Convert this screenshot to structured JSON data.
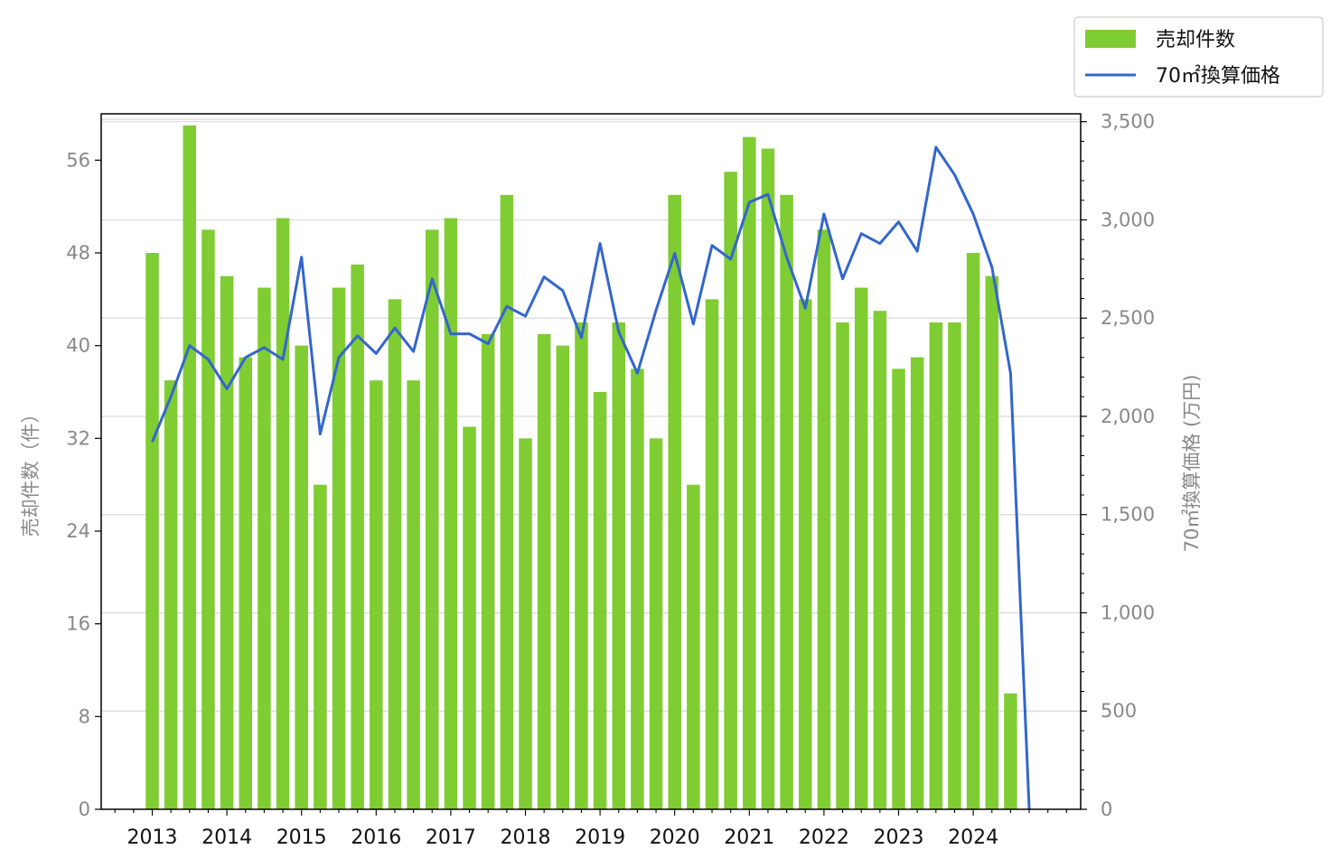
{
  "chart_data": {
    "type": "bar",
    "categories": [
      "2013-Q1",
      "2013-Q2",
      "2013-Q3",
      "2013-Q4",
      "2014-Q1",
      "2014-Q2",
      "2014-Q3",
      "2014-Q4",
      "2015-Q1",
      "2015-Q2",
      "2015-Q3",
      "2015-Q4",
      "2016-Q1",
      "2016-Q2",
      "2016-Q3",
      "2016-Q4",
      "2017-Q1",
      "2017-Q2",
      "2017-Q3",
      "2017-Q4",
      "2018-Q1",
      "2018-Q2",
      "2018-Q3",
      "2018-Q4",
      "2019-Q1",
      "2019-Q2",
      "2019-Q3",
      "2019-Q4",
      "2020-Q1",
      "2020-Q2",
      "2020-Q3",
      "2020-Q4",
      "2021-Q1",
      "2021-Q2",
      "2021-Q3",
      "2021-Q4",
      "2022-Q1",
      "2022-Q2",
      "2022-Q3",
      "2022-Q4",
      "2023-Q1",
      "2023-Q2",
      "2023-Q3",
      "2023-Q4",
      "2024-Q1",
      "2024-Q2",
      "2024-Q3",
      "2024-Q4"
    ],
    "x_tick_labels": [
      "2013",
      "2014",
      "2015",
      "2016",
      "2017",
      "2018",
      "2019",
      "2020",
      "2021",
      "2022",
      "2023",
      "2024"
    ],
    "series": [
      {
        "name": "売却件数",
        "type": "bar",
        "axis": "left",
        "color": "#7fcc33",
        "values": [
          48,
          37,
          59,
          50,
          46,
          39,
          45,
          51,
          40,
          28,
          45,
          47,
          37,
          44,
          37,
          50,
          51,
          33,
          41,
          53,
          32,
          41,
          40,
          42,
          36,
          42,
          38,
          32,
          53,
          28,
          44,
          55,
          58,
          57,
          53,
          44,
          50,
          42,
          45,
          43,
          38,
          39,
          42,
          42,
          48,
          46,
          10,
          null
        ]
      },
      {
        "name": "70㎡換算価格",
        "type": "line",
        "axis": "right",
        "color": "#3366cc",
        "values": [
          1870,
          2100,
          2360,
          2290,
          2140,
          2300,
          2350,
          2290,
          2810,
          1910,
          2300,
          2410,
          2320,
          2450,
          2330,
          2700,
          2420,
          2420,
          2370,
          2560,
          2510,
          2710,
          2640,
          2400,
          2880,
          2430,
          2220,
          2540,
          2830,
          2470,
          2870,
          2800,
          3090,
          3130,
          2810,
          2550,
          3030,
          2700,
          2930,
          2880,
          2990,
          2840,
          3370,
          3230,
          3030,
          2760,
          2220,
          0
        ]
      }
    ],
    "y_left": {
      "label": "売却件数（件）",
      "ylim": [
        0,
        60
      ],
      "ticks": [
        "0",
        "8",
        "16",
        "24",
        "32",
        "40",
        "48",
        "56"
      ],
      "tick_values": [
        0,
        8,
        16,
        24,
        32,
        40,
        48,
        56
      ]
    },
    "y_right": {
      "label": "70㎡換算価格 (万円)",
      "ylim": [
        0,
        3540
      ],
      "ticks": [
        "0",
        "500",
        "1,000",
        "1,500",
        "2,000",
        "2,500",
        "3,000",
        "3,500"
      ],
      "tick_values": [
        0,
        500,
        1000,
        1500,
        2000,
        2500,
        3000,
        3500
      ]
    },
    "grid": "horizontal, right axis",
    "legend": {
      "placement": "top-right",
      "items": [
        "売却件数",
        "70㎡換算価格"
      ]
    }
  }
}
